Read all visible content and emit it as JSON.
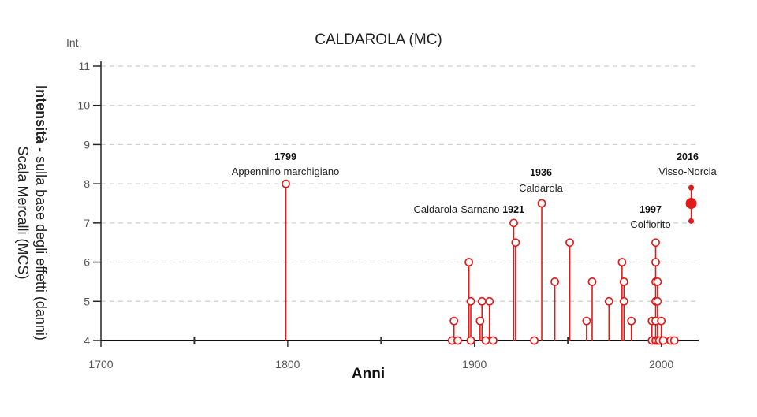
{
  "chart_data": {
    "type": "scatter",
    "title": "CALDAROLA (MC)",
    "ylabel_unit": "Int.",
    "ylabel_bold": "Intensità",
    "ylabel_rest": " - sulla base degli effetti (danni)",
    "ylabel_line2": "Scala Mercalli (MCS)",
    "xlabel": "Anni",
    "xlim": [
      1700,
      2020
    ],
    "ylim": [
      4,
      11
    ],
    "xticks": [
      1700,
      1800,
      1900,
      2000
    ],
    "xticks_minor": [
      1750,
      1850,
      1950
    ],
    "yticks": [
      4,
      5,
      6,
      7,
      8,
      9,
      10,
      11
    ],
    "grid": "horizontal dashed",
    "color": "#e01919",
    "series": [
      {
        "marker": "hollow-circle",
        "points": [
          {
            "x": 1799,
            "y": 8
          },
          {
            "x": 1888,
            "y": 4
          },
          {
            "x": 1889,
            "y": 4.5
          },
          {
            "x": 1891,
            "y": 4
          },
          {
            "x": 1897,
            "y": 6
          },
          {
            "x": 1898,
            "y": 5
          },
          {
            "x": 1898,
            "y": 4
          },
          {
            "x": 1903,
            "y": 4.5
          },
          {
            "x": 1904,
            "y": 5
          },
          {
            "x": 1906,
            "y": 4
          },
          {
            "x": 1908,
            "y": 5
          },
          {
            "x": 1910,
            "y": 4
          },
          {
            "x": 1921,
            "y": 7
          },
          {
            "x": 1922,
            "y": 6.5
          },
          {
            "x": 1932,
            "y": 4
          },
          {
            "x": 1936,
            "y": 7.5
          },
          {
            "x": 1943,
            "y": 5.5
          },
          {
            "x": 1951,
            "y": 6.5
          },
          {
            "x": 1960,
            "y": 4.5
          },
          {
            "x": 1963,
            "y": 5.5
          },
          {
            "x": 1972,
            "y": 5
          },
          {
            "x": 1979,
            "y": 6
          },
          {
            "x": 1980,
            "y": 5.5
          },
          {
            "x": 1980,
            "y": 5
          },
          {
            "x": 1984,
            "y": 4.5
          },
          {
            "x": 1995,
            "y": 4.5
          },
          {
            "x": 1995,
            "y": 4
          },
          {
            "x": 1997,
            "y": 6.5
          },
          {
            "x": 1997,
            "y": 6
          },
          {
            "x": 1997,
            "y": 5.5
          },
          {
            "x": 1997,
            "y": 5
          },
          {
            "x": 1997,
            "y": 4.5
          },
          {
            "x": 1997,
            "y": 4
          },
          {
            "x": 1998,
            "y": 5.5
          },
          {
            "x": 1998,
            "y": 5
          },
          {
            "x": 1998,
            "y": 4
          },
          {
            "x": 1999,
            "y": 4
          },
          {
            "x": 2000,
            "y": 4.5
          },
          {
            "x": 2001,
            "y": 4
          },
          {
            "x": 2005,
            "y": 4
          },
          {
            "x": 2007,
            "y": 4
          }
        ]
      },
      {
        "marker": "filled-circle-range",
        "points": [
          {
            "x": 2016,
            "y": 7.5,
            "low": 7.05,
            "high": 7.9
          }
        ]
      }
    ],
    "annotations": [
      {
        "year": "1799",
        "name": "Appennino marchigiano",
        "layout": "stacked"
      },
      {
        "year": "1921",
        "name": "Caldarola-Sarnano",
        "layout": "inline"
      },
      {
        "year": "1936",
        "name": "Caldarola",
        "layout": "stacked"
      },
      {
        "year": "1997",
        "name": "Colfiorito",
        "layout": "stacked"
      },
      {
        "year": "2016",
        "name": "Visso-Norcia",
        "layout": "stacked"
      }
    ]
  }
}
